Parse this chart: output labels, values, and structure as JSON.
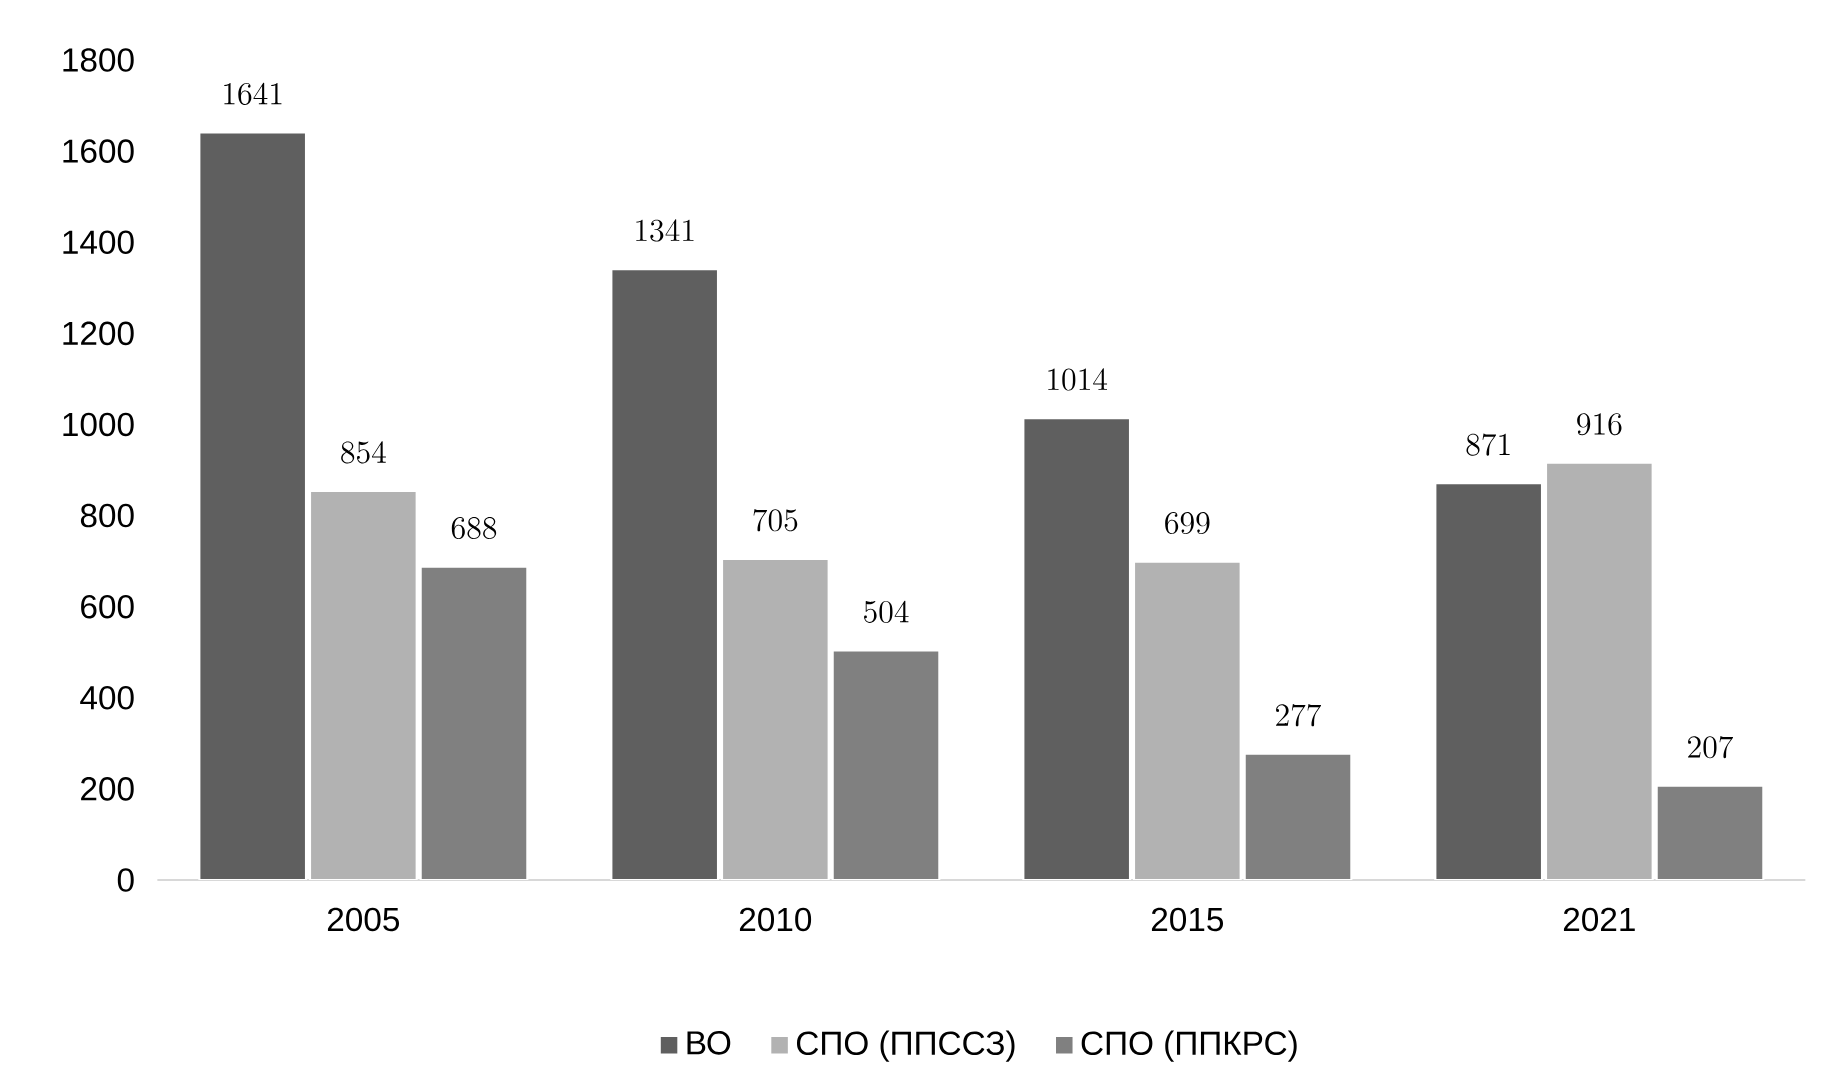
{
  "chart_data": {
    "type": "bar",
    "categories": [
      "2005",
      "2010",
      "2015",
      "2021"
    ],
    "series": [
      {
        "name": "ВО",
        "color": "#5f5f5f",
        "values": [
          1641,
          1341,
          1014,
          871
        ]
      },
      {
        "name": "СПО (ППССЗ)",
        "color": "#b2b2b2",
        "values": [
          854,
          705,
          699,
          916
        ]
      },
      {
        "name": "СПО (ППКРС)",
        "color": "#808080",
        "values": [
          688,
          504,
          277,
          207
        ]
      }
    ],
    "ylim": [
      0,
      1800
    ],
    "yticks": [
      0,
      200,
      400,
      600,
      800,
      1000,
      1200,
      1400,
      1600,
      1800
    ],
    "data_labels": true,
    "legend": "bottom",
    "grid": false
  }
}
